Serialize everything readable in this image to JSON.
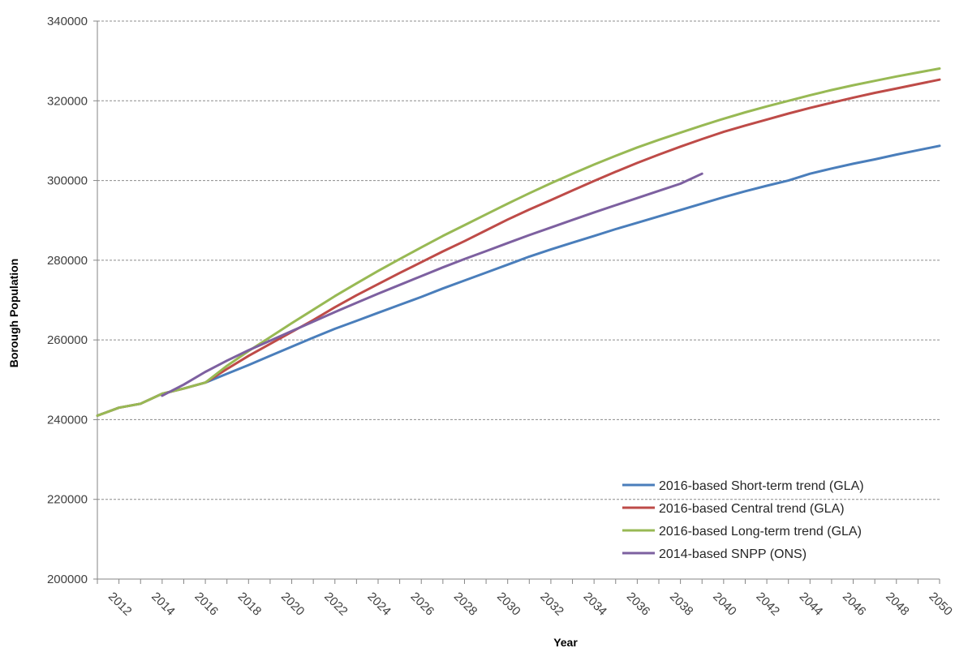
{
  "chart_data": {
    "type": "line",
    "title": "",
    "xlabel": "Year",
    "ylabel": "Borough Population",
    "xlim": [
      2011,
      2050
    ],
    "ylim": [
      200000,
      340000
    ],
    "y_ticks": [
      200000,
      220000,
      240000,
      260000,
      280000,
      300000,
      320000,
      340000
    ],
    "y_tick_labels": [
      "200000",
      "220000",
      "240000",
      "260000",
      "280000",
      "300000",
      "320000",
      "340000"
    ],
    "x_ticks": [
      2012,
      2014,
      2016,
      2018,
      2020,
      2022,
      2024,
      2026,
      2028,
      2030,
      2032,
      2034,
      2036,
      2038,
      2040,
      2042,
      2044,
      2046,
      2048,
      2050
    ],
    "x_tick_labels": [
      "2012",
      "2014",
      "2016",
      "2018",
      "2020",
      "2022",
      "2024",
      "2026",
      "2028",
      "2030",
      "2032",
      "2034",
      "2036",
      "2038",
      "2040",
      "2042",
      "2044",
      "2046",
      "2048",
      "2050"
    ],
    "grid": "horizontal dashed",
    "legend_position": "bottom-right",
    "series": [
      {
        "name": "2016-based Short-term trend (GLA)",
        "color": "#4a7ebb",
        "x": [
          2011,
          2012,
          2013,
          2014,
          2015,
          2016,
          2017,
          2018,
          2019,
          2020,
          2021,
          2022,
          2023,
          2024,
          2025,
          2026,
          2027,
          2028,
          2029,
          2030,
          2031,
          2032,
          2033,
          2034,
          2035,
          2036,
          2037,
          2038,
          2039,
          2040,
          2041,
          2042,
          2043,
          2044,
          2045,
          2046,
          2047,
          2048,
          2049,
          2050
        ],
        "values": [
          241000,
          243000,
          244000,
          246500,
          247800,
          249300,
          251500,
          253700,
          256000,
          258300,
          260600,
          262800,
          264800,
          266800,
          268800,
          270800,
          272900,
          274900,
          276900,
          278900,
          280900,
          282700,
          284400,
          286100,
          287800,
          289400,
          291000,
          292600,
          294200,
          295800,
          297300,
          298700,
          300000,
          301700,
          303000,
          304200,
          305300,
          306500,
          307600,
          308700
        ]
      },
      {
        "name": "2016-based Central trend (GLA)",
        "color": "#be4b48",
        "x": [
          2011,
          2012,
          2013,
          2014,
          2015,
          2016,
          2017,
          2018,
          2019,
          2020,
          2021,
          2022,
          2023,
          2024,
          2025,
          2026,
          2027,
          2028,
          2029,
          2030,
          2031,
          2032,
          2033,
          2034,
          2035,
          2036,
          2037,
          2038,
          2039,
          2040,
          2041,
          2042,
          2043,
          2044,
          2045,
          2046,
          2047,
          2048,
          2049,
          2050
        ],
        "values": [
          241000,
          243000,
          244000,
          246500,
          247800,
          249300,
          252700,
          256000,
          259000,
          262000,
          265000,
          268200,
          271200,
          274000,
          276800,
          279500,
          282200,
          284800,
          287500,
          290200,
          292700,
          295100,
          297500,
          299900,
          302200,
          304400,
          306500,
          308500,
          310400,
          312200,
          313800,
          315300,
          316800,
          318200,
          319500,
          320800,
          322000,
          323100,
          324200,
          325300
        ]
      },
      {
        "name": "2016-based Long-term trend (GLA)",
        "color": "#98b954",
        "x": [
          2011,
          2012,
          2013,
          2014,
          2015,
          2016,
          2017,
          2018,
          2019,
          2020,
          2021,
          2022,
          2023,
          2024,
          2025,
          2026,
          2027,
          2028,
          2029,
          2030,
          2031,
          2032,
          2033,
          2034,
          2035,
          2036,
          2037,
          2038,
          2039,
          2040,
          2041,
          2042,
          2043,
          2044,
          2045,
          2046,
          2047,
          2048,
          2049,
          2050
        ],
        "values": [
          241000,
          243000,
          244000,
          246500,
          247800,
          249300,
          253500,
          257200,
          260700,
          264200,
          267600,
          271000,
          274200,
          277300,
          280300,
          283200,
          286100,
          288800,
          291500,
          294200,
          296800,
          299300,
          301700,
          304000,
          306200,
          308300,
          310200,
          312000,
          313800,
          315500,
          317100,
          318600,
          320000,
          321400,
          322700,
          323900,
          325000,
          326100,
          327100,
          328100
        ]
      },
      {
        "name": "2014-based SNPP (ONS)",
        "color": "#7d60a0",
        "x": [
          2014,
          2015,
          2016,
          2017,
          2018,
          2019,
          2020,
          2021,
          2022,
          2023,
          2024,
          2025,
          2026,
          2027,
          2028,
          2029,
          2030,
          2031,
          2032,
          2033,
          2034,
          2035,
          2036,
          2037,
          2038,
          2039
        ],
        "values": [
          246000,
          248800,
          252000,
          254800,
          257400,
          259800,
          262200,
          264600,
          267000,
          269300,
          271600,
          273800,
          276000,
          278200,
          280300,
          282300,
          284300,
          286300,
          288200,
          290100,
          292000,
          293800,
          295600,
          297400,
          299200,
          301700
        ]
      }
    ]
  }
}
